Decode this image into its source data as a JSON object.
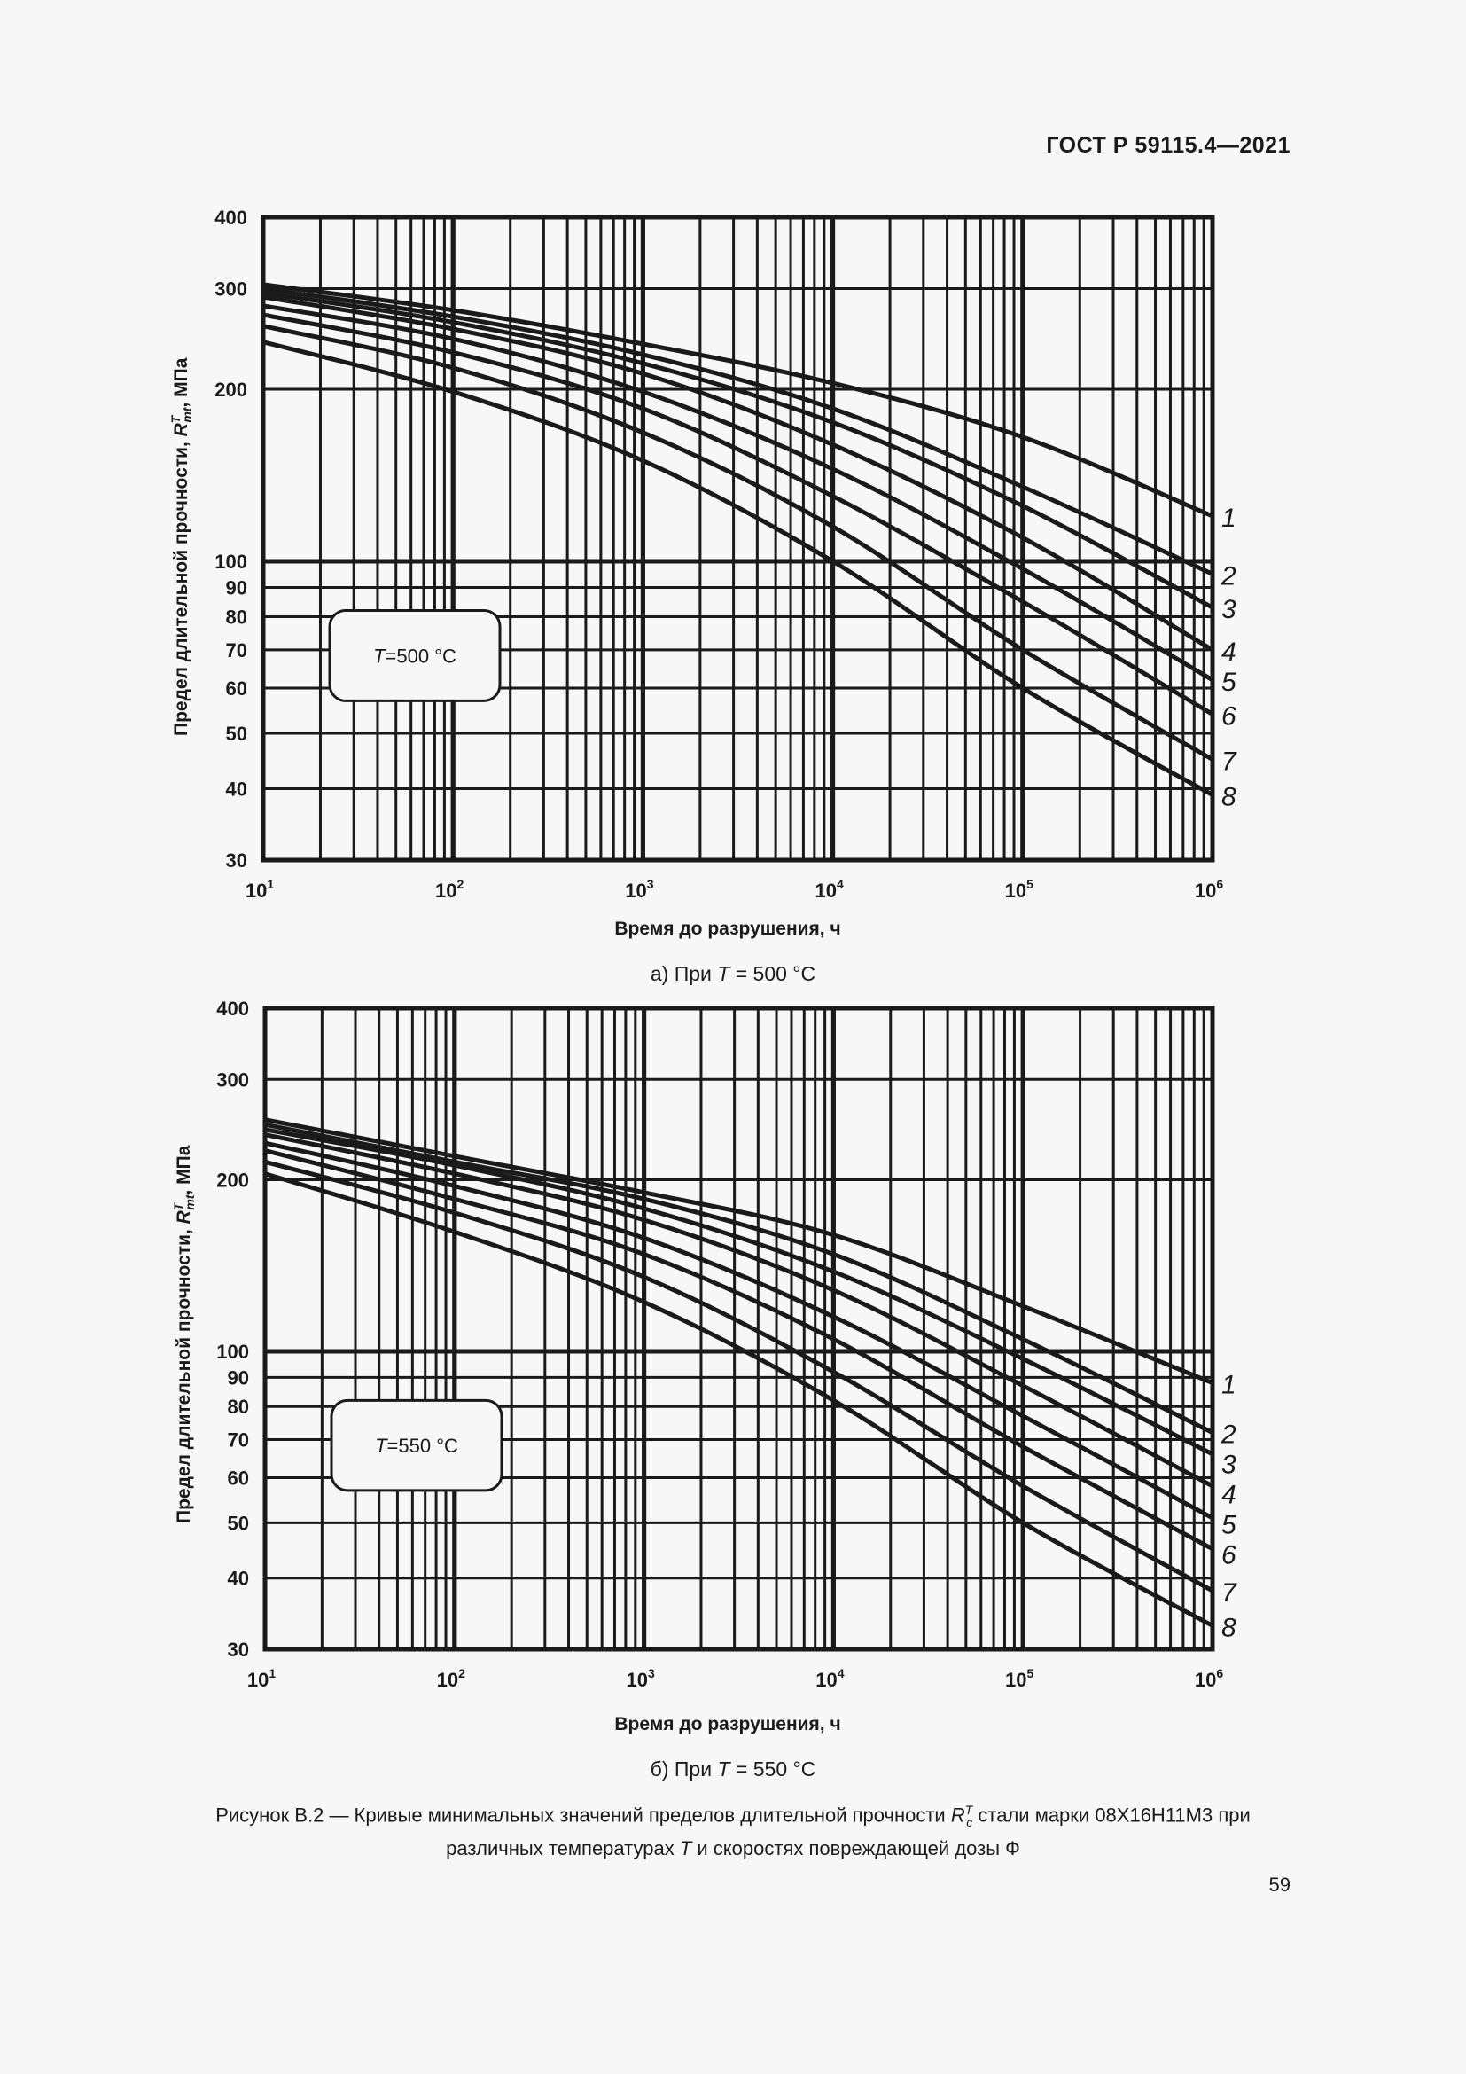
{
  "header": {
    "doc_id": "ГОСТ Р 59115.4—2021"
  },
  "page_number": "59",
  "caption": {
    "line1_prefix": "Рисунок В.2 — Кривые минимальных значений пределов длительной прочности ",
    "symbol": "R",
    "symbol_sup": "T",
    "symbol_sub": "c",
    "line1_suffix": " стали марки 08Х16Н11М3 при",
    "line2_prefix": "различных температурах ",
    "line2_var": "T",
    "line2_suffix": " и скоростях повреждающей дозы Ф"
  },
  "chart_data": [
    {
      "type": "line",
      "title": "а) При T = 500 °C",
      "subcaption_prefix": "а) При ",
      "subcaption_var": "T",
      "subcaption_suffix": " = 500 °C",
      "annotation": "T=500 °C",
      "annotation_var": "T",
      "annotation_value": "=500 °C",
      "xlabel": "Время до разрушения, ч",
      "ylabel": "Предел длительной прочности, R^T_mt, МПа",
      "ylabel_prefix": "Предел длительной прочности, ",
      "ylabel_suffix": ", МПа",
      "x_scale": "log",
      "y_scale": "log",
      "xlim": [
        10,
        1000000
      ],
      "ylim": [
        30,
        400
      ],
      "x_ticks": [
        "10^1",
        "10^2",
        "10^3",
        "10^4",
        "10^5",
        "10^6"
      ],
      "y_ticks": [
        400,
        300,
        200,
        100,
        90,
        80,
        70,
        60,
        50,
        40,
        30
      ],
      "grid": true,
      "x": [
        10,
        100,
        1000,
        10000,
        100000,
        1000000
      ],
      "series": [
        {
          "name": "1",
          "values": [
            305,
            275,
            240,
            205,
            165,
            120
          ]
        },
        {
          "name": "2",
          "values": [
            300,
            268,
            230,
            185,
            135,
            95
          ]
        },
        {
          "name": "3",
          "values": [
            295,
            262,
            222,
            175,
            125,
            83
          ]
        },
        {
          "name": "4",
          "values": [
            290,
            255,
            213,
            160,
            110,
            70
          ]
        },
        {
          "name": "5",
          "values": [
            280,
            245,
            198,
            145,
            97,
            62
          ]
        },
        {
          "name": "6",
          "values": [
            270,
            232,
            185,
            130,
            85,
            54
          ]
        },
        {
          "name": "7",
          "values": [
            258,
            218,
            168,
            115,
            70,
            45
          ]
        },
        {
          "name": "8",
          "values": [
            242,
            198,
            150,
            100,
            60,
            39
          ]
        }
      ]
    },
    {
      "type": "line",
      "title": "б) При T = 550 °C",
      "subcaption_prefix": "б) При ",
      "subcaption_var": "T",
      "subcaption_suffix": " = 550 °C",
      "annotation": "T=550 °C",
      "annotation_var": "T",
      "annotation_value": "=550 °C",
      "xlabel": "Время до разрушения, ч",
      "ylabel": "Предел длительной прочности, R^T_mt, МПа",
      "ylabel_prefix": "Предел длительной прочности, ",
      "ylabel_suffix": ", МПа",
      "x_scale": "log",
      "y_scale": "log",
      "xlim": [
        10,
        1000000
      ],
      "ylim": [
        30,
        400
      ],
      "x_ticks": [
        "10^1",
        "10^2",
        "10^3",
        "10^4",
        "10^5",
        "10^6"
      ],
      "y_ticks": [
        400,
        300,
        200,
        100,
        90,
        80,
        70,
        60,
        50,
        40,
        30
      ],
      "grid": true,
      "x": [
        10,
        100,
        1000,
        10000,
        100000,
        1000000
      ],
      "series": [
        {
          "name": "1",
          "values": [
            255,
            220,
            190,
            160,
            120,
            88
          ]
        },
        {
          "name": "2",
          "values": [
            250,
            215,
            185,
            148,
            105,
            72
          ]
        },
        {
          "name": "3",
          "values": [
            245,
            212,
            178,
            138,
            97,
            66
          ]
        },
        {
          "name": "4",
          "values": [
            240,
            205,
            170,
            128,
            87,
            58
          ]
        },
        {
          "name": "5",
          "values": [
            232,
            195,
            158,
            115,
            77,
            51
          ]
        },
        {
          "name": "6",
          "values": [
            225,
            185,
            148,
            105,
            68,
            45
          ]
        },
        {
          "name": "7",
          "values": [
            215,
            175,
            135,
            92,
            58,
            38
          ]
        },
        {
          "name": "8",
          "values": [
            205,
            162,
            122,
            82,
            50,
            33
          ]
        }
      ]
    }
  ]
}
